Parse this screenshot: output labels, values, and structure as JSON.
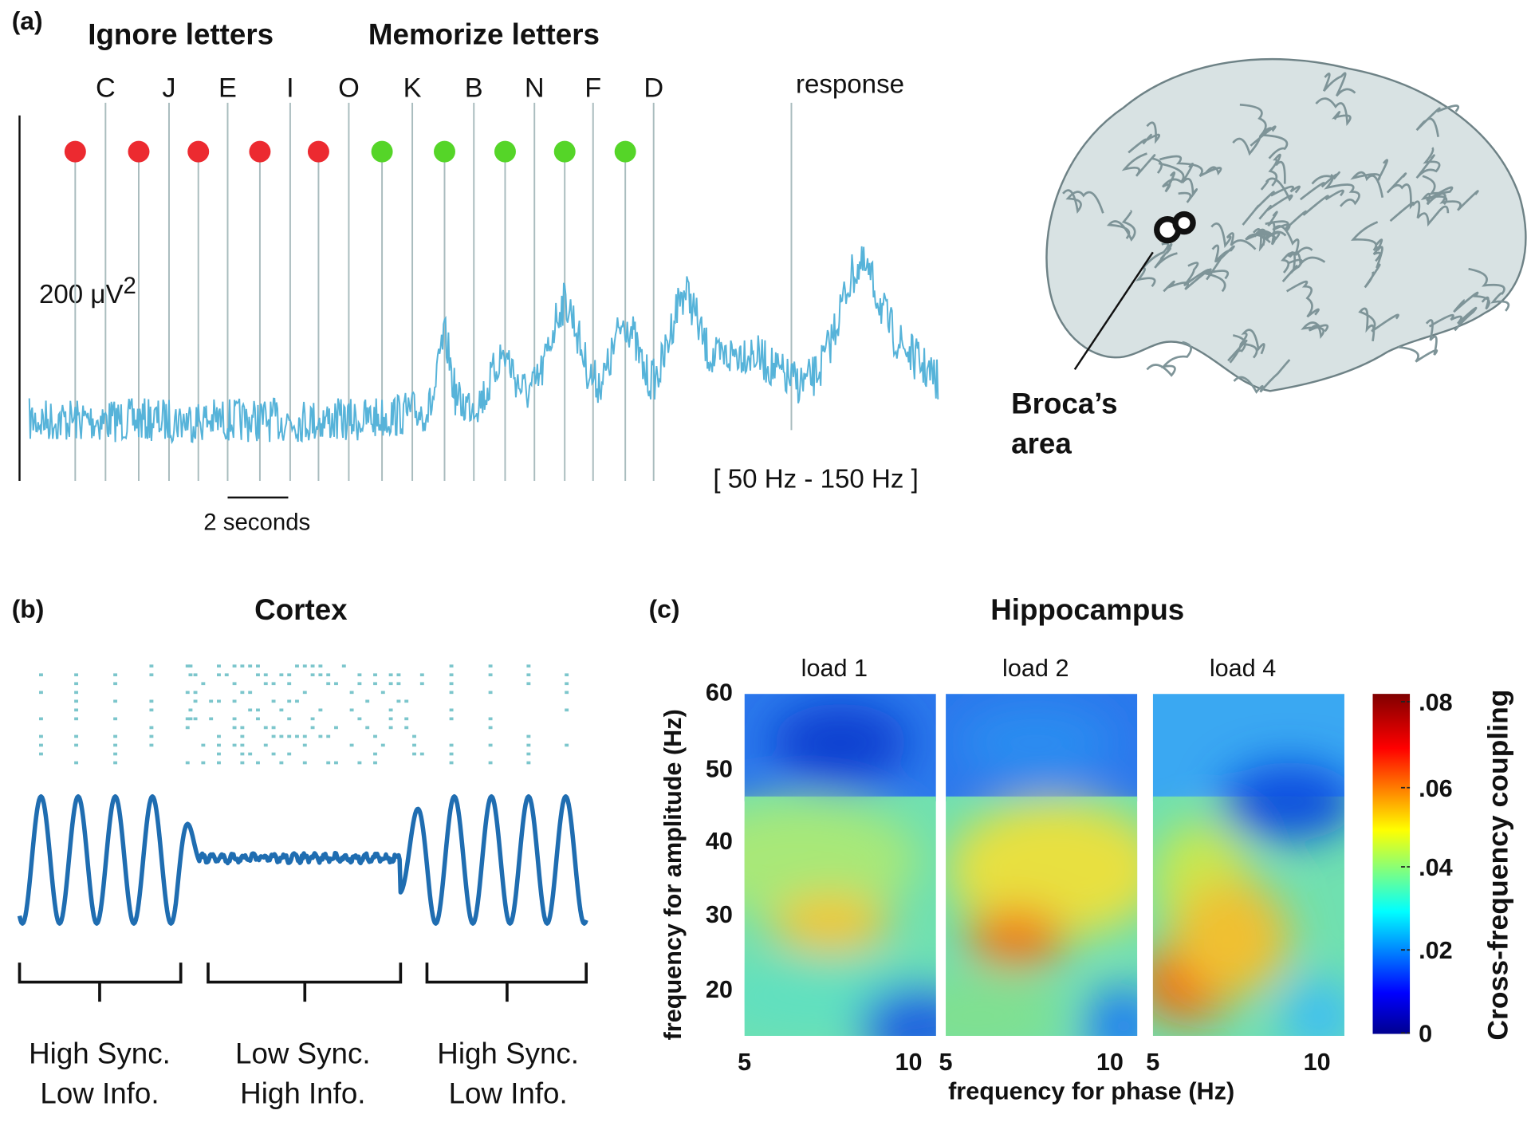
{
  "panel_a": {
    "label": "(a)",
    "ignore_heading": "Ignore letters",
    "memorize_heading": "Memorize letters",
    "letters": [
      "C",
      "J",
      "E",
      "I",
      "O",
      "K",
      "B",
      "N",
      "F",
      "D"
    ],
    "response": "response",
    "scale_label": "200 μV",
    "scale_label_sup": "2",
    "time_bar": "2 seconds",
    "band": "[ 50 Hz - 150 Hz ]",
    "region": [
      "Broca’s",
      "area"
    ]
  },
  "panel_b": {
    "label": "(b)",
    "title": "Cortex",
    "states": [
      [
        "High Sync.",
        "Low Info."
      ],
      [
        "Low Sync.",
        "High Info."
      ],
      [
        "High Sync.",
        "Low Info."
      ]
    ]
  },
  "panel_c": {
    "label": "(c)",
    "title": "Hippocampus",
    "loads": [
      "load 1",
      "load 2",
      "load 4"
    ],
    "y_label": "frequency for amplitude (Hz)",
    "y_ticks": [
      "60",
      "50",
      "40",
      "30",
      "20"
    ],
    "x_ticks": [
      [
        "5",
        "10"
      ],
      [
        "5",
        "10"
      ],
      [
        "5",
        "10"
      ]
    ],
    "x_label": "frequency for phase (Hz)",
    "colorbar_ticks": [
      ".08",
      ".06",
      ".04",
      ".02",
      "0"
    ],
    "colorbar_label": "Cross-frequency coupling"
  }
}
